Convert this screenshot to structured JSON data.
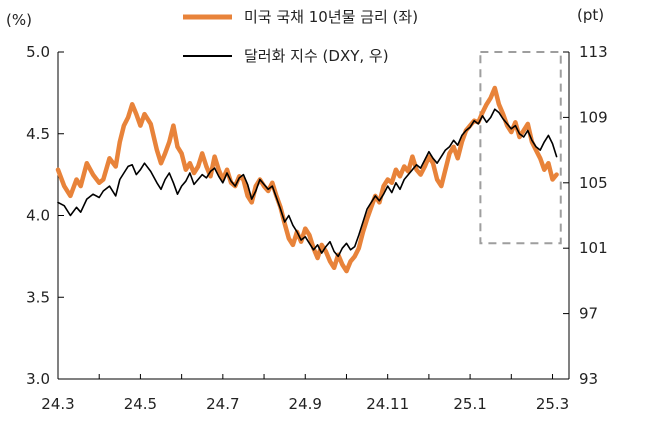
{
  "chart_data": {
    "type": "line",
    "left_unit": "(%)",
    "right_unit": "(pt)",
    "x_tick_labels": [
      "24.3",
      "24.5",
      "24.7",
      "24.9",
      "24.11",
      "25.1",
      "25.3"
    ],
    "y_left_ticks": [
      "3.0",
      "3.5",
      "4.0",
      "4.5",
      "5.0"
    ],
    "y_right_ticks": [
      "93",
      "97",
      "101",
      "105",
      "109",
      "113"
    ],
    "ylim_left": [
      3.0,
      5.0
    ],
    "ylim_right": [
      93,
      113
    ],
    "xlim": [
      0,
      12.4
    ],
    "highlight_box": {
      "x_range": [
        10.25,
        12.2
      ],
      "y_range_left": [
        3.83,
        5.0
      ]
    },
    "colors": {
      "treasury": "#e8833a",
      "dxy": "#000000",
      "box": "#9e9e9e",
      "axis": "#000000"
    },
    "series": [
      {
        "name": "미국 국채 10년물 금리 (좌)",
        "axis": "left",
        "x": [
          0,
          0.15,
          0.3,
          0.45,
          0.55,
          0.7,
          0.85,
          1.0,
          1.1,
          1.25,
          1.4,
          1.5,
          1.6,
          1.7,
          1.8,
          1.9,
          2.0,
          2.1,
          2.25,
          2.4,
          2.5,
          2.6,
          2.7,
          2.8,
          2.9,
          3.0,
          3.1,
          3.2,
          3.3,
          3.4,
          3.5,
          3.6,
          3.7,
          3.8,
          3.9,
          4.0,
          4.1,
          4.2,
          4.3,
          4.4,
          4.5,
          4.6,
          4.7,
          4.8,
          4.9,
          5.0,
          5.1,
          5.2,
          5.3,
          5.4,
          5.5,
          5.6,
          5.7,
          5.8,
          5.9,
          6.0,
          6.1,
          6.2,
          6.3,
          6.4,
          6.5,
          6.6,
          6.7,
          6.8,
          6.9,
          7.0,
          7.1,
          7.2,
          7.3,
          7.4,
          7.5,
          7.6,
          7.7,
          7.8,
          7.9,
          8.0,
          8.1,
          8.2,
          8.3,
          8.4,
          8.5,
          8.6,
          8.7,
          8.8,
          8.9,
          9.0,
          9.1,
          9.2,
          9.3,
          9.4,
          9.5,
          9.6,
          9.7,
          9.8,
          9.9,
          10.0,
          10.1,
          10.2,
          10.3,
          10.4,
          10.5,
          10.6,
          10.7,
          10.8,
          10.9,
          11.0,
          11.1,
          11.2,
          11.3,
          11.4,
          11.5,
          11.6,
          11.7,
          11.8,
          11.9,
          12.0,
          12.1
        ],
        "values": [
          4.28,
          4.18,
          4.12,
          4.22,
          4.18,
          4.32,
          4.25,
          4.2,
          4.22,
          4.35,
          4.3,
          4.45,
          4.55,
          4.6,
          4.68,
          4.62,
          4.55,
          4.62,
          4.56,
          4.4,
          4.32,
          4.38,
          4.45,
          4.55,
          4.42,
          4.38,
          4.28,
          4.32,
          4.26,
          4.3,
          4.38,
          4.3,
          4.24,
          4.36,
          4.28,
          4.22,
          4.28,
          4.2,
          4.18,
          4.24,
          4.22,
          4.12,
          4.08,
          4.18,
          4.22,
          4.18,
          4.15,
          4.2,
          4.12,
          4.05,
          3.95,
          3.86,
          3.82,
          3.9,
          3.84,
          3.92,
          3.88,
          3.8,
          3.74,
          3.82,
          3.78,
          3.72,
          3.68,
          3.76,
          3.7,
          3.66,
          3.72,
          3.75,
          3.8,
          3.9,
          3.98,
          4.05,
          4.12,
          4.08,
          4.18,
          4.22,
          4.2,
          4.28,
          4.24,
          4.3,
          4.27,
          4.36,
          4.28,
          4.25,
          4.3,
          4.36,
          4.32,
          4.22,
          4.18,
          4.28,
          4.38,
          4.42,
          4.35,
          4.45,
          4.52,
          4.55,
          4.58,
          4.57,
          4.63,
          4.68,
          4.72,
          4.78,
          4.68,
          4.62,
          4.55,
          4.51,
          4.57,
          4.48,
          4.52,
          4.56,
          4.45,
          4.4,
          4.35,
          4.28,
          4.32,
          4.22,
          4.25
        ]
      },
      {
        "name": "달러화 지수 (DXY, 우)",
        "axis": "right",
        "x": [
          0,
          0.15,
          0.3,
          0.45,
          0.55,
          0.7,
          0.85,
          1.0,
          1.1,
          1.25,
          1.4,
          1.5,
          1.6,
          1.7,
          1.8,
          1.9,
          2.0,
          2.1,
          2.25,
          2.4,
          2.5,
          2.6,
          2.7,
          2.8,
          2.9,
          3.0,
          3.1,
          3.2,
          3.3,
          3.4,
          3.5,
          3.6,
          3.7,
          3.8,
          3.9,
          4.0,
          4.1,
          4.2,
          4.3,
          4.4,
          4.5,
          4.6,
          4.7,
          4.8,
          4.9,
          5.0,
          5.1,
          5.2,
          5.3,
          5.4,
          5.5,
          5.6,
          5.7,
          5.8,
          5.9,
          6.0,
          6.1,
          6.2,
          6.3,
          6.4,
          6.5,
          6.6,
          6.7,
          6.8,
          6.9,
          7.0,
          7.1,
          7.2,
          7.3,
          7.4,
          7.5,
          7.6,
          7.7,
          7.8,
          7.9,
          8.0,
          8.1,
          8.2,
          8.3,
          8.4,
          8.5,
          8.6,
          8.7,
          8.8,
          8.9,
          9.0,
          9.1,
          9.2,
          9.3,
          9.4,
          9.5,
          9.6,
          9.7,
          9.8,
          9.9,
          10.0,
          10.1,
          10.2,
          10.3,
          10.4,
          10.5,
          10.6,
          10.7,
          10.8,
          10.9,
          11.0,
          11.1,
          11.2,
          11.3,
          11.4,
          11.5,
          11.6,
          11.7,
          11.8,
          11.9,
          12.0,
          12.1
        ],
        "values": [
          103.8,
          103.6,
          103.0,
          103.5,
          103.2,
          104.0,
          104.3,
          104.1,
          104.5,
          104.8,
          104.2,
          105.2,
          105.6,
          106.0,
          106.1,
          105.5,
          105.8,
          106.2,
          105.7,
          105.0,
          104.6,
          105.2,
          105.6,
          105.0,
          104.3,
          104.8,
          105.1,
          105.6,
          104.9,
          105.2,
          105.5,
          105.3,
          105.7,
          105.9,
          105.4,
          105.0,
          105.6,
          105.1,
          104.8,
          105.3,
          105.5,
          104.9,
          104.0,
          104.5,
          105.2,
          104.9,
          104.6,
          104.8,
          104.1,
          103.4,
          102.6,
          103.0,
          102.4,
          102.0,
          101.5,
          101.7,
          101.3,
          100.9,
          101.2,
          100.7,
          101.1,
          101.4,
          100.8,
          100.5,
          101.0,
          101.3,
          100.9,
          101.1,
          101.8,
          102.6,
          103.4,
          103.8,
          104.2,
          103.9,
          104.3,
          104.8,
          104.4,
          105.0,
          104.6,
          105.2,
          105.5,
          105.8,
          106.1,
          105.9,
          106.4,
          106.9,
          106.5,
          106.2,
          106.6,
          107.0,
          107.2,
          107.6,
          107.3,
          107.9,
          108.2,
          108.4,
          108.8,
          108.6,
          109.1,
          108.7,
          109.0,
          109.5,
          109.3,
          108.9,
          108.6,
          108.3,
          108.5,
          108.0,
          107.8,
          108.2,
          107.6,
          107.2,
          107.0,
          107.5,
          107.9,
          107.4,
          106.6
        ]
      }
    ]
  }
}
